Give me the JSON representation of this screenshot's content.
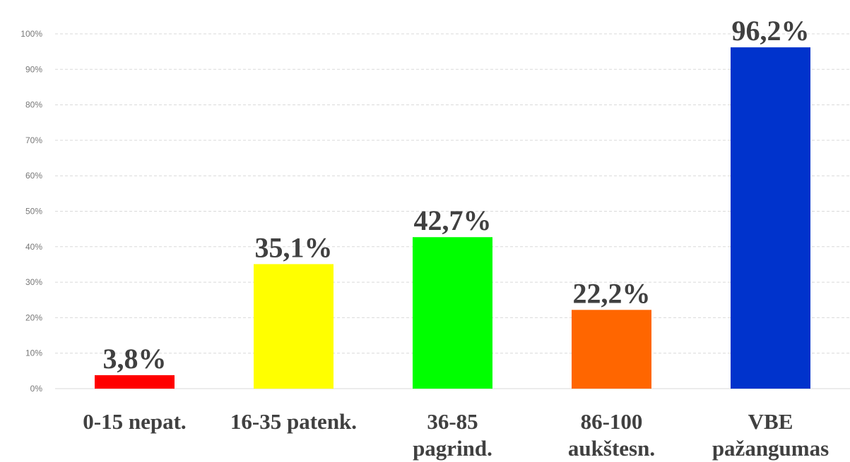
{
  "chart_data": {
    "type": "bar",
    "categories": [
      [
        "0-15 nepat."
      ],
      [
        "16-35 patenk."
      ],
      [
        "36-85",
        "pagrind."
      ],
      [
        "86-100",
        "aukštesn."
      ],
      [
        "VBE",
        "pažangumas"
      ]
    ],
    "values": [
      3.8,
      35.1,
      42.7,
      22.2,
      96.2
    ],
    "data_labels": [
      "3,8%",
      "35,1%",
      "42,7%",
      "22,2%",
      "96,2%"
    ],
    "colors": [
      "#ff0000",
      "#ffff00",
      "#00ff00",
      "#ff6600",
      "#0033cc"
    ],
    "ylim": [
      0,
      100
    ],
    "y_ticks": [
      "0%",
      "10%",
      "20%",
      "30%",
      "40%",
      "50%",
      "60%",
      "70%",
      "80%",
      "90%",
      "100%"
    ],
    "grid": true,
    "legend": "none"
  }
}
